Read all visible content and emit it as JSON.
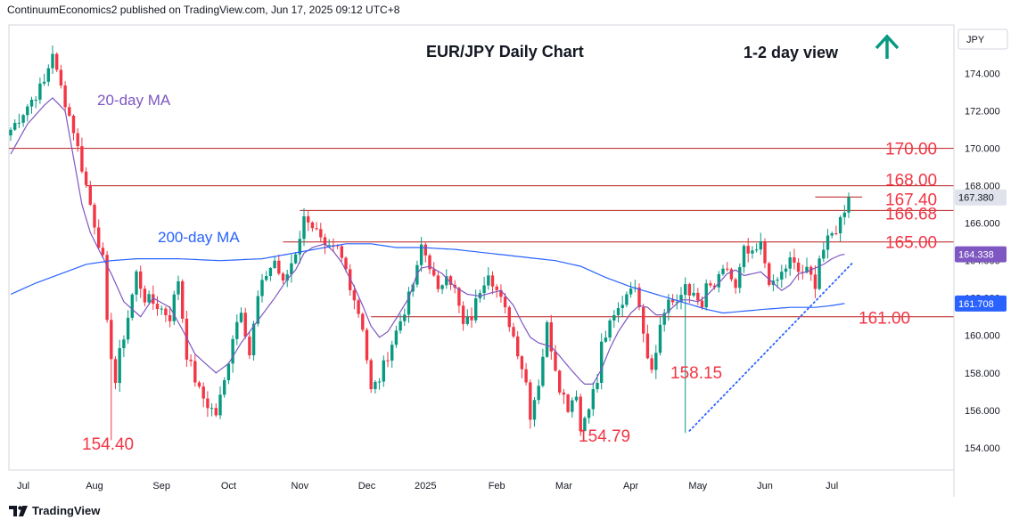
{
  "header": {
    "publisher_line": "ContinuumEconomics2 published on TradingView.com, Jun 17, 2025 09:12 UTC+8"
  },
  "footer": {
    "brand": "TradingView",
    "logo": "tradingview-logo"
  },
  "colors": {
    "candle_up": "#089981",
    "candle_down": "#f23645",
    "ma20": "#7e57c2",
    "ma200": "#2962ff",
    "level_line": "#b71c1c",
    "level_text": "#f23645",
    "arrow": "#089981",
    "last_price_bg": "#e0e3eb",
    "ma20_badge": "#7e57c2",
    "ma200_badge": "#2962ff"
  },
  "chart_data": {
    "type": "candlestick",
    "title": "EUR/JPY Daily Chart",
    "view_label": "1-2 day view",
    "view_icon": "up-arrow-icon",
    "currency": "JPY",
    "ylim": [
      152.8,
      176.6
    ],
    "y_ticks": [
      "154.000",
      "156.000",
      "158.000",
      "160.000",
      "162.000",
      "164.000",
      "166.000",
      "168.000",
      "170.000",
      "172.000",
      "174.000"
    ],
    "x_ticks": [
      "Jul",
      "Aug",
      "Sep",
      "Oct",
      "Nov",
      "Dec",
      "2025",
      "Feb",
      "Mar",
      "Apr",
      "May",
      "Jun",
      "Jul"
    ],
    "price_badges": [
      {
        "label": "167.380",
        "value": 167.38,
        "kind": "last"
      },
      {
        "label": "164.338",
        "value": 164.338,
        "kind": "ma20"
      },
      {
        "label": "161.708",
        "value": 161.708,
        "kind": "ma200"
      }
    ],
    "horizontal_levels": [
      {
        "label": "170.00",
        "value": 170.0
      },
      {
        "label": "168.00",
        "value": 168.0
      },
      {
        "label": "167.40",
        "value": 167.4
      },
      {
        "label": "166.68",
        "value": 166.68
      },
      {
        "label": "165.00",
        "value": 165.0
      },
      {
        "label": "161.00",
        "value": 161.0
      }
    ],
    "annotations": [
      {
        "label": "154.40",
        "value": 154.4
      },
      {
        "label": "154.79",
        "value": 154.79
      },
      {
        "label": "158.15",
        "value": 158.15
      },
      {
        "label": "20-day MA",
        "series": "ma20"
      },
      {
        "label": "200-day MA",
        "series": "ma200"
      }
    ],
    "close_path": [
      [
        0,
        171.0
      ],
      [
        5,
        172.6
      ],
      [
        8,
        173.5
      ],
      [
        10,
        175.2
      ],
      [
        11,
        174.0
      ],
      [
        13,
        172.5
      ],
      [
        15,
        171.0
      ],
      [
        18,
        168.0
      ],
      [
        20,
        166.0
      ],
      [
        22,
        164.0
      ],
      [
        23,
        160.5
      ],
      [
        25,
        157.5
      ],
      [
        26,
        159.0
      ],
      [
        28,
        161.0
      ],
      [
        30,
        163.3
      ],
      [
        32,
        162.0
      ],
      [
        35,
        161.6
      ],
      [
        38,
        161.0
      ],
      [
        40,
        163.0
      ],
      [
        42,
        159.0
      ],
      [
        45,
        157.0
      ],
      [
        47,
        156.3
      ],
      [
        49,
        155.8
      ],
      [
        51,
        157.5
      ],
      [
        53,
        160.0
      ],
      [
        55,
        161.5
      ],
      [
        57,
        159.0
      ],
      [
        59,
        162.0
      ],
      [
        61,
        163.3
      ],
      [
        63,
        164.0
      ],
      [
        65,
        162.7
      ],
      [
        68,
        164.5
      ],
      [
        70,
        166.2
      ],
      [
        71,
        166.3
      ],
      [
        73,
        165.5
      ],
      [
        75,
        164.5
      ],
      [
        78,
        164.6
      ],
      [
        80,
        163.5
      ],
      [
        82,
        162.0
      ],
      [
        84,
        160.5
      ],
      [
        86,
        157.0
      ],
      [
        88,
        157.7
      ],
      [
        90,
        159.0
      ],
      [
        93,
        160.8
      ],
      [
        95,
        162.0
      ],
      [
        97,
        163.5
      ],
      [
        98,
        164.8
      ],
      [
        100,
        163.8
      ],
      [
        102,
        162.2
      ],
      [
        104,
        163.5
      ],
      [
        106,
        162.4
      ],
      [
        108,
        160.5
      ],
      [
        110,
        161.0
      ],
      [
        112,
        162.5
      ],
      [
        114,
        163.5
      ],
      [
        116,
        162.4
      ],
      [
        119,
        160.7
      ],
      [
        121,
        159.2
      ],
      [
        123,
        157.5
      ],
      [
        124,
        155.8
      ],
      [
        126,
        157.5
      ],
      [
        128,
        160.5
      ],
      [
        129,
        159.4
      ],
      [
        131,
        157.3
      ],
      [
        133,
        156.2
      ],
      [
        135,
        157.0
      ],
      [
        136,
        154.9
      ],
      [
        138,
        156.4
      ],
      [
        140,
        157.5
      ],
      [
        141,
        159.5
      ],
      [
        143,
        160.5
      ],
      [
        146,
        161.8
      ],
      [
        148,
        162.8
      ],
      [
        150,
        161.8
      ],
      [
        152,
        159.0
      ],
      [
        153,
        158.3
      ],
      [
        155,
        160.5
      ],
      [
        157,
        162.0
      ],
      [
        159,
        161.5
      ],
      [
        161,
        162.8
      ],
      [
        163,
        162.0
      ],
      [
        165,
        161.5
      ],
      [
        166,
        162.5
      ],
      [
        168,
        162.6
      ],
      [
        170,
        163.3
      ],
      [
        171,
        163.6
      ],
      [
        173,
        162.4
      ],
      [
        175,
        164.5
      ],
      [
        177,
        164.2
      ],
      [
        179,
        164.8
      ],
      [
        181,
        163.0
      ],
      [
        182,
        162.6
      ],
      [
        184,
        163.3
      ],
      [
        186,
        164.0
      ],
      [
        188,
        163.4
      ],
      [
        190,
        163.4
      ],
      [
        192,
        162.8
      ],
      [
        193,
        164.2
      ],
      [
        195,
        165.0
      ],
      [
        197,
        165.7
      ],
      [
        198,
        166.2
      ],
      [
        199,
        166.8
      ],
      [
        200,
        167.38
      ]
    ],
    "ma20_path": [
      [
        0,
        169.7
      ],
      [
        4,
        171.3
      ],
      [
        8,
        172.3
      ],
      [
        10,
        172.7
      ],
      [
        13,
        172.0
      ],
      [
        15,
        169.5
      ],
      [
        17,
        167.0
      ],
      [
        19,
        165.5
      ],
      [
        21,
        164.6
      ],
      [
        24,
        163.3
      ],
      [
        27,
        161.8
      ],
      [
        31,
        161.0
      ],
      [
        34,
        162.0
      ],
      [
        38,
        161.5
      ],
      [
        41,
        160.3
      ],
      [
        44,
        159.0
      ],
      [
        47,
        158.4
      ],
      [
        49,
        158.0
      ],
      [
        52,
        158.5
      ],
      [
        55,
        159.6
      ],
      [
        58,
        160.5
      ],
      [
        61,
        161.4
      ],
      [
        63,
        162.0
      ],
      [
        66,
        163.0
      ],
      [
        68,
        163.5
      ],
      [
        70,
        164.4
      ],
      [
        72,
        164.7
      ],
      [
        75,
        164.9
      ],
      [
        77,
        164.5
      ],
      [
        79,
        163.9
      ],
      [
        82,
        162.6
      ],
      [
        84,
        161.6
      ],
      [
        86,
        160.5
      ],
      [
        88,
        159.9
      ],
      [
        90,
        160.2
      ],
      [
        92,
        160.9
      ],
      [
        95,
        162.0
      ],
      [
        97,
        163.3
      ],
      [
        98,
        163.6
      ],
      [
        100,
        163.7
      ],
      [
        103,
        163.3
      ],
      [
        106,
        162.6
      ],
      [
        109,
        162.2
      ],
      [
        112,
        162.1
      ],
      [
        115,
        162.3
      ],
      [
        117,
        162.4
      ],
      [
        120,
        161.6
      ],
      [
        122,
        160.7
      ],
      [
        124,
        159.9
      ],
      [
        126,
        159.6
      ],
      [
        129,
        159.4
      ],
      [
        131,
        158.9
      ],
      [
        134,
        158.1
      ],
      [
        136,
        157.6
      ],
      [
        137,
        157.4
      ],
      [
        139,
        157.4
      ],
      [
        141,
        158.2
      ],
      [
        143,
        159.3
      ],
      [
        145,
        160.2
      ],
      [
        148,
        161.2
      ],
      [
        150,
        161.6
      ],
      [
        152,
        161.5
      ],
      [
        154,
        161.1
      ],
      [
        156,
        161.1
      ],
      [
        158,
        161.5
      ],
      [
        160,
        161.9
      ],
      [
        162,
        161.9
      ],
      [
        164,
        161.8
      ],
      [
        166,
        162.1
      ],
      [
        169,
        162.8
      ],
      [
        171,
        163.3
      ],
      [
        173,
        163.5
      ],
      [
        175,
        163.2
      ],
      [
        177,
        163.3
      ],
      [
        179,
        163.4
      ],
      [
        181,
        163.0
      ],
      [
        184,
        162.4
      ],
      [
        186,
        162.7
      ],
      [
        188,
        163.3
      ],
      [
        190,
        163.4
      ],
      [
        192,
        163.6
      ],
      [
        194,
        163.8
      ],
      [
        196,
        164.1
      ],
      [
        198,
        164.3
      ],
      [
        199,
        164.34
      ]
    ],
    "ma200_path": [
      [
        0,
        162.2
      ],
      [
        6,
        162.8
      ],
      [
        12,
        163.3
      ],
      [
        18,
        163.8
      ],
      [
        24,
        164.0
      ],
      [
        30,
        164.1
      ],
      [
        40,
        164.1
      ],
      [
        50,
        164.0
      ],
      [
        60,
        164.1
      ],
      [
        70,
        164.5
      ],
      [
        80,
        164.9
      ],
      [
        86,
        164.9
      ],
      [
        92,
        164.7
      ],
      [
        98,
        164.7
      ],
      [
        106,
        164.6
      ],
      [
        114,
        164.4
      ],
      [
        122,
        164.2
      ],
      [
        130,
        164.0
      ],
      [
        136,
        163.7
      ],
      [
        142,
        163.1
      ],
      [
        148,
        162.6
      ],
      [
        154,
        162.2
      ],
      [
        160,
        161.8
      ],
      [
        166,
        161.4
      ],
      [
        170,
        161.2
      ],
      [
        175,
        161.3
      ],
      [
        180,
        161.4
      ],
      [
        186,
        161.5
      ],
      [
        192,
        161.5
      ],
      [
        196,
        161.6
      ],
      [
        199,
        161.708
      ]
    ],
    "trendline": {
      "style": "dotted",
      "from": [
        162,
        154.9
      ],
      "to": [
        201,
        163.9
      ]
    }
  }
}
